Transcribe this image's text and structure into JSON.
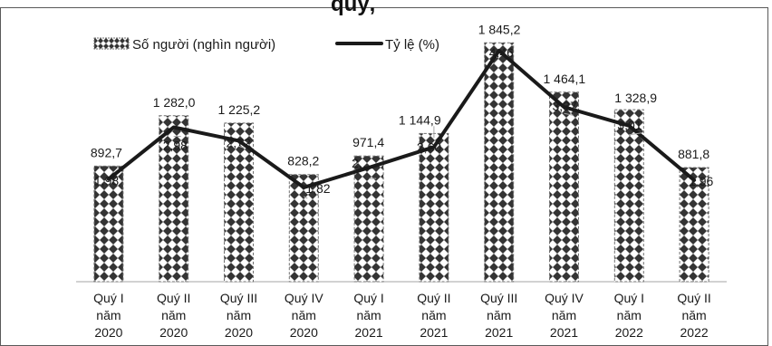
{
  "chart_data": {
    "type": "bar",
    "title_fragment": "quý,",
    "categories": [
      [
        "Quý I",
        "năm",
        "2020"
      ],
      [
        "Quý II",
        "năm",
        "2020"
      ],
      [
        "Quý III",
        "năm",
        "2020"
      ],
      [
        "Quý IV",
        "năm",
        "2020"
      ],
      [
        "Quý I",
        "năm",
        "2021"
      ],
      [
        "Quý II",
        "năm",
        "2021"
      ],
      [
        "Quý III",
        "năm",
        "2021"
      ],
      [
        "Quý IV",
        "năm",
        "2021"
      ],
      [
        "Quý I",
        "năm",
        "2022"
      ],
      [
        "Quý II",
        "năm",
        "2022"
      ]
    ],
    "series": [
      {
        "name": "Số người (nghìn người)",
        "type": "bar",
        "values": [
          892.7,
          1282.0,
          1225.2,
          828.2,
          971.4,
          1144.9,
          1845.2,
          1464.1,
          1328.9,
          881.8
        ],
        "labels": [
          "892,7",
          "1 282,0",
          "1 225,2",
          "828,2",
          "971,4",
          "1 144,9",
          "1 845,2",
          "1 464,1",
          "1 328,9",
          "881,8"
        ]
      },
      {
        "name": "Tỷ lệ (%)",
        "type": "line",
        "values": [
          1.98,
          2.98,
          2.72,
          1.82,
          2.2,
          2.6,
          4.46,
          3.37,
          3.01,
          1.96
        ],
        "labels": [
          "1,98",
          "2,98",
          "2,72",
          "1,82",
          "2,…",
          "2,60",
          "4,46",
          "3,37",
          "3,01",
          "1,96"
        ]
      }
    ],
    "legend": "top-left",
    "grid": false,
    "ylim_bar": [
      0,
      1900
    ],
    "ylim_line": [
      0,
      4.8
    ]
  },
  "colors": {
    "bar_fill": "#ffffff",
    "bar_pattern": "#343434",
    "line": "#1a1a1a"
  }
}
